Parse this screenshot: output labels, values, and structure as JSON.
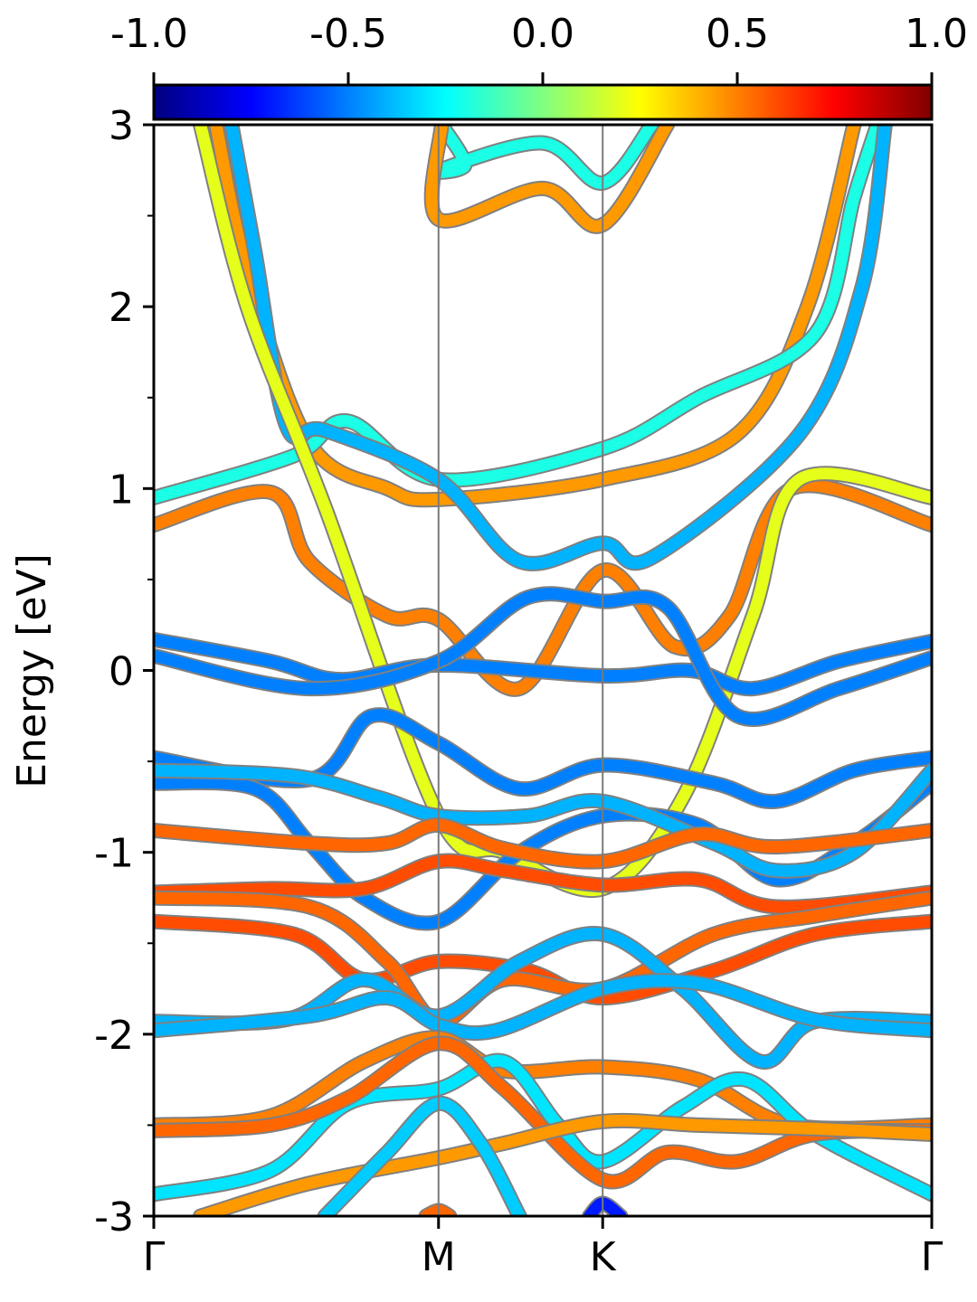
{
  "chart_data": {
    "type": "line",
    "title": "",
    "xlabel": "",
    "ylabel": "Energy [eV]",
    "ylim": [
      -3,
      3
    ],
    "grid": false,
    "x_ticks": [
      {
        "label": "Γ",
        "x": 0
      },
      {
        "label": "M",
        "x": 0.366
      },
      {
        "label": "K",
        "x": 0.577
      },
      {
        "label": "Γ",
        "x": 1
      }
    ],
    "y_ticks": [
      "3",
      "2",
      "1",
      "0",
      "-1",
      "-2",
      "-3"
    ],
    "y_tick_values": [
      3,
      2,
      1,
      0,
      -1,
      -2,
      -3
    ],
    "colorbar": {
      "range": [
        -1.0,
        1.0
      ],
      "tick_labels": [
        "-1.0",
        "-0.5",
        "0.0",
        "0.5",
        "1.0"
      ],
      "tick_values": [
        -1.0,
        -0.5,
        0.0,
        0.5,
        1.0
      ],
      "colormap": "jet"
    },
    "series": [
      {
        "c": 0.45,
        "pts": [
          [
            0.08,
            3.0
          ],
          [
            0.12,
            2.2
          ],
          [
            0.2,
            1.25
          ],
          [
            0.3,
            1.0
          ],
          [
            0.366,
            0.94
          ],
          [
            0.577,
            1.05
          ],
          [
            0.75,
            1.3
          ],
          [
            0.84,
            2.0
          ],
          [
            0.9,
            3.0
          ]
        ]
      },
      {
        "c": -0.2,
        "pts": [
          [
            0.0,
            0.95
          ],
          [
            0.18,
            1.18
          ],
          [
            0.25,
            1.37
          ],
          [
            0.366,
            1.05
          ],
          [
            0.577,
            1.22
          ],
          [
            0.7,
            1.5
          ],
          [
            0.85,
            1.85
          ],
          [
            0.9,
            2.6
          ],
          [
            0.93,
            3.0
          ]
        ]
      },
      {
        "c": -0.4,
        "pts": [
          [
            0.1,
            3.0
          ],
          [
            0.13,
            2.3
          ],
          [
            0.17,
            1.35
          ],
          [
            0.22,
            1.32
          ],
          [
            0.366,
            1.05
          ],
          [
            0.47,
            0.6
          ],
          [
            0.577,
            0.7
          ],
          [
            0.64,
            0.62
          ],
          [
            0.83,
            1.3
          ],
          [
            0.91,
            2.1
          ],
          [
            0.94,
            3.0
          ]
        ]
      },
      {
        "c": 0.5,
        "pts": [
          [
            0.0,
            0.8
          ],
          [
            0.15,
            0.98
          ],
          [
            0.2,
            0.6
          ],
          [
            0.3,
            0.3
          ],
          [
            0.366,
            0.28
          ],
          [
            0.47,
            -0.1
          ],
          [
            0.577,
            0.55
          ],
          [
            0.67,
            0.13
          ],
          [
            0.74,
            0.3
          ],
          [
            0.82,
            1.0
          ],
          [
            1.0,
            0.8
          ]
        ]
      },
      {
        "c": 0.2,
        "pts": [
          [
            0.06,
            3.0
          ],
          [
            0.12,
            2.0
          ],
          [
            0.22,
            0.9
          ],
          [
            0.366,
            -0.8
          ],
          [
            0.45,
            -1.0
          ],
          [
            0.577,
            -1.2
          ],
          [
            0.68,
            -0.7
          ],
          [
            0.77,
            0.3
          ],
          [
            0.83,
            1.05
          ],
          [
            1.0,
            0.95
          ]
        ]
      },
      {
        "c": -0.2,
        "pts": [
          [
            0.37,
            3.0
          ],
          [
            0.4,
            2.78
          ],
          [
            0.366,
            2.75
          ],
          [
            0.5,
            2.9
          ],
          [
            0.577,
            2.68
          ],
          [
            0.64,
            3.0
          ]
        ]
      },
      {
        "c": 0.45,
        "pts": [
          [
            0.37,
            3.0
          ],
          [
            0.366,
            2.48
          ],
          [
            0.5,
            2.65
          ],
          [
            0.577,
            2.45
          ],
          [
            0.66,
            3.0
          ]
        ]
      },
      {
        "c": -0.5,
        "pts": [
          [
            0.0,
            0.17
          ],
          [
            0.15,
            0.05
          ],
          [
            0.24,
            -0.05
          ],
          [
            0.366,
            0.03
          ],
          [
            0.577,
            -0.03
          ],
          [
            0.69,
            0.0
          ],
          [
            0.77,
            -0.1
          ],
          [
            0.88,
            0.05
          ],
          [
            1.0,
            0.16
          ]
        ]
      },
      {
        "c": -0.5,
        "pts": [
          [
            0.0,
            0.08
          ],
          [
            0.2,
            -0.1
          ],
          [
            0.366,
            0.05
          ],
          [
            0.48,
            0.4
          ],
          [
            0.577,
            0.38
          ],
          [
            0.66,
            0.35
          ],
          [
            0.75,
            -0.25
          ],
          [
            0.88,
            -0.1
          ],
          [
            1.0,
            0.07
          ]
        ]
      },
      {
        "c": -0.5,
        "pts": [
          [
            0.0,
            -0.48
          ],
          [
            0.2,
            -0.6
          ],
          [
            0.28,
            -0.25
          ],
          [
            0.366,
            -0.4
          ],
          [
            0.47,
            -0.65
          ],
          [
            0.577,
            -0.52
          ],
          [
            0.72,
            -0.62
          ],
          [
            0.8,
            -0.72
          ],
          [
            0.9,
            -0.55
          ],
          [
            1.0,
            -0.48
          ]
        ]
      },
      {
        "c": -0.5,
        "pts": [
          [
            0.0,
            -0.62
          ],
          [
            0.13,
            -0.65
          ],
          [
            0.2,
            -0.95
          ],
          [
            0.27,
            -1.25
          ],
          [
            0.366,
            -1.38
          ],
          [
            0.47,
            -1.0
          ],
          [
            0.577,
            -0.8
          ],
          [
            0.7,
            -0.85
          ],
          [
            0.8,
            -1.15
          ],
          [
            0.9,
            -0.95
          ],
          [
            1.0,
            -0.62
          ]
        ]
      },
      {
        "c": -0.4,
        "pts": [
          [
            0.0,
            -0.55
          ],
          [
            0.18,
            -0.58
          ],
          [
            0.29,
            -0.7
          ],
          [
            0.366,
            -0.8
          ],
          [
            0.48,
            -0.8
          ],
          [
            0.577,
            -0.72
          ],
          [
            0.72,
            -0.95
          ],
          [
            0.8,
            -1.1
          ],
          [
            0.9,
            -1.0
          ],
          [
            1.0,
            -0.55
          ]
        ]
      },
      {
        "c": 0.55,
        "pts": [
          [
            0.0,
            -0.88
          ],
          [
            0.2,
            -0.95
          ],
          [
            0.3,
            -0.95
          ],
          [
            0.366,
            -0.85
          ],
          [
            0.45,
            -0.98
          ],
          [
            0.577,
            -1.05
          ],
          [
            0.7,
            -0.9
          ],
          [
            0.8,
            -0.97
          ],
          [
            1.0,
            -0.88
          ]
        ]
      },
      {
        "c": 0.6,
        "pts": [
          [
            0.0,
            -1.22
          ],
          [
            0.15,
            -1.2
          ],
          [
            0.27,
            -1.2
          ],
          [
            0.366,
            -1.05
          ],
          [
            0.45,
            -1.1
          ],
          [
            0.577,
            -1.18
          ],
          [
            0.7,
            -1.15
          ],
          [
            0.8,
            -1.3
          ],
          [
            1.0,
            -1.22
          ]
        ]
      },
      {
        "c": 0.6,
        "pts": [
          [
            0.0,
            -1.38
          ],
          [
            0.18,
            -1.45
          ],
          [
            0.27,
            -1.7
          ],
          [
            0.366,
            -1.6
          ],
          [
            0.48,
            -1.65
          ],
          [
            0.577,
            -1.8
          ],
          [
            0.72,
            -1.65
          ],
          [
            0.85,
            -1.45
          ],
          [
            1.0,
            -1.38
          ]
        ]
      },
      {
        "c": 0.55,
        "pts": [
          [
            0.0,
            -1.25
          ],
          [
            0.2,
            -1.3
          ],
          [
            0.3,
            -1.6
          ],
          [
            0.366,
            -1.93
          ],
          [
            0.45,
            -1.7
          ],
          [
            0.577,
            -1.75
          ],
          [
            0.72,
            -1.45
          ],
          [
            0.85,
            -1.35
          ],
          [
            1.0,
            -1.25
          ]
        ]
      },
      {
        "c": -0.4,
        "pts": [
          [
            0.0,
            -1.93
          ],
          [
            0.17,
            -1.92
          ],
          [
            0.27,
            -1.7
          ],
          [
            0.366,
            -1.9
          ],
          [
            0.47,
            -1.6
          ],
          [
            0.577,
            -1.45
          ],
          [
            0.68,
            -1.75
          ],
          [
            0.78,
            -2.15
          ],
          [
            0.85,
            -1.93
          ],
          [
            1.0,
            -1.93
          ]
        ]
      },
      {
        "c": -0.4,
        "pts": [
          [
            0.0,
            -1.98
          ],
          [
            0.2,
            -1.9
          ],
          [
            0.3,
            -1.8
          ],
          [
            0.366,
            -1.95
          ],
          [
            0.44,
            -1.98
          ],
          [
            0.577,
            -1.75
          ],
          [
            0.7,
            -1.72
          ],
          [
            0.85,
            -1.92
          ],
          [
            1.0,
            -1.98
          ]
        ]
      },
      {
        "c": 0.5,
        "pts": [
          [
            0.0,
            -2.5
          ],
          [
            0.15,
            -2.45
          ],
          [
            0.27,
            -2.15
          ],
          [
            0.366,
            -2.02
          ],
          [
            0.45,
            -2.2
          ],
          [
            0.577,
            -2.18
          ],
          [
            0.7,
            -2.25
          ],
          [
            0.82,
            -2.5
          ],
          [
            1.0,
            -2.5
          ]
        ]
      },
      {
        "c": -0.3,
        "pts": [
          [
            0.0,
            -2.88
          ],
          [
            0.15,
            -2.75
          ],
          [
            0.25,
            -2.38
          ],
          [
            0.366,
            -2.3
          ],
          [
            0.45,
            -2.15
          ],
          [
            0.52,
            -2.5
          ],
          [
            0.577,
            -2.7
          ],
          [
            0.68,
            -2.4
          ],
          [
            0.76,
            -2.25
          ],
          [
            0.85,
            -2.55
          ],
          [
            1.0,
            -2.88
          ]
        ]
      },
      {
        "c": 0.55,
        "pts": [
          [
            0.0,
            -2.53
          ],
          [
            0.15,
            -2.5
          ],
          [
            0.25,
            -2.35
          ],
          [
            0.366,
            -2.05
          ],
          [
            0.45,
            -2.3
          ],
          [
            0.577,
            -2.8
          ],
          [
            0.66,
            -2.65
          ],
          [
            0.75,
            -2.7
          ],
          [
            0.85,
            -2.55
          ],
          [
            1.0,
            -2.53
          ]
        ]
      },
      {
        "c": 0.45,
        "pts": [
          [
            0.06,
            -3.0
          ],
          [
            0.2,
            -2.82
          ],
          [
            0.366,
            -2.68
          ],
          [
            0.45,
            -2.6
          ],
          [
            0.577,
            -2.48
          ],
          [
            0.7,
            -2.5
          ],
          [
            0.85,
            -2.52
          ],
          [
            1.0,
            -2.55
          ]
        ]
      },
      {
        "c": -0.35,
        "pts": [
          [
            0.22,
            -3.0
          ],
          [
            0.3,
            -2.65
          ],
          [
            0.366,
            -2.38
          ],
          [
            0.42,
            -2.6
          ],
          [
            0.47,
            -3.0
          ]
        ]
      },
      {
        "c": 0.55,
        "pts": [
          [
            0.35,
            -3.0
          ],
          [
            0.366,
            -2.97
          ],
          [
            0.38,
            -3.0
          ]
        ]
      },
      {
        "c": -0.7,
        "pts": [
          [
            0.56,
            -3.0
          ],
          [
            0.577,
            -2.93
          ],
          [
            0.6,
            -3.0
          ]
        ]
      }
    ]
  }
}
